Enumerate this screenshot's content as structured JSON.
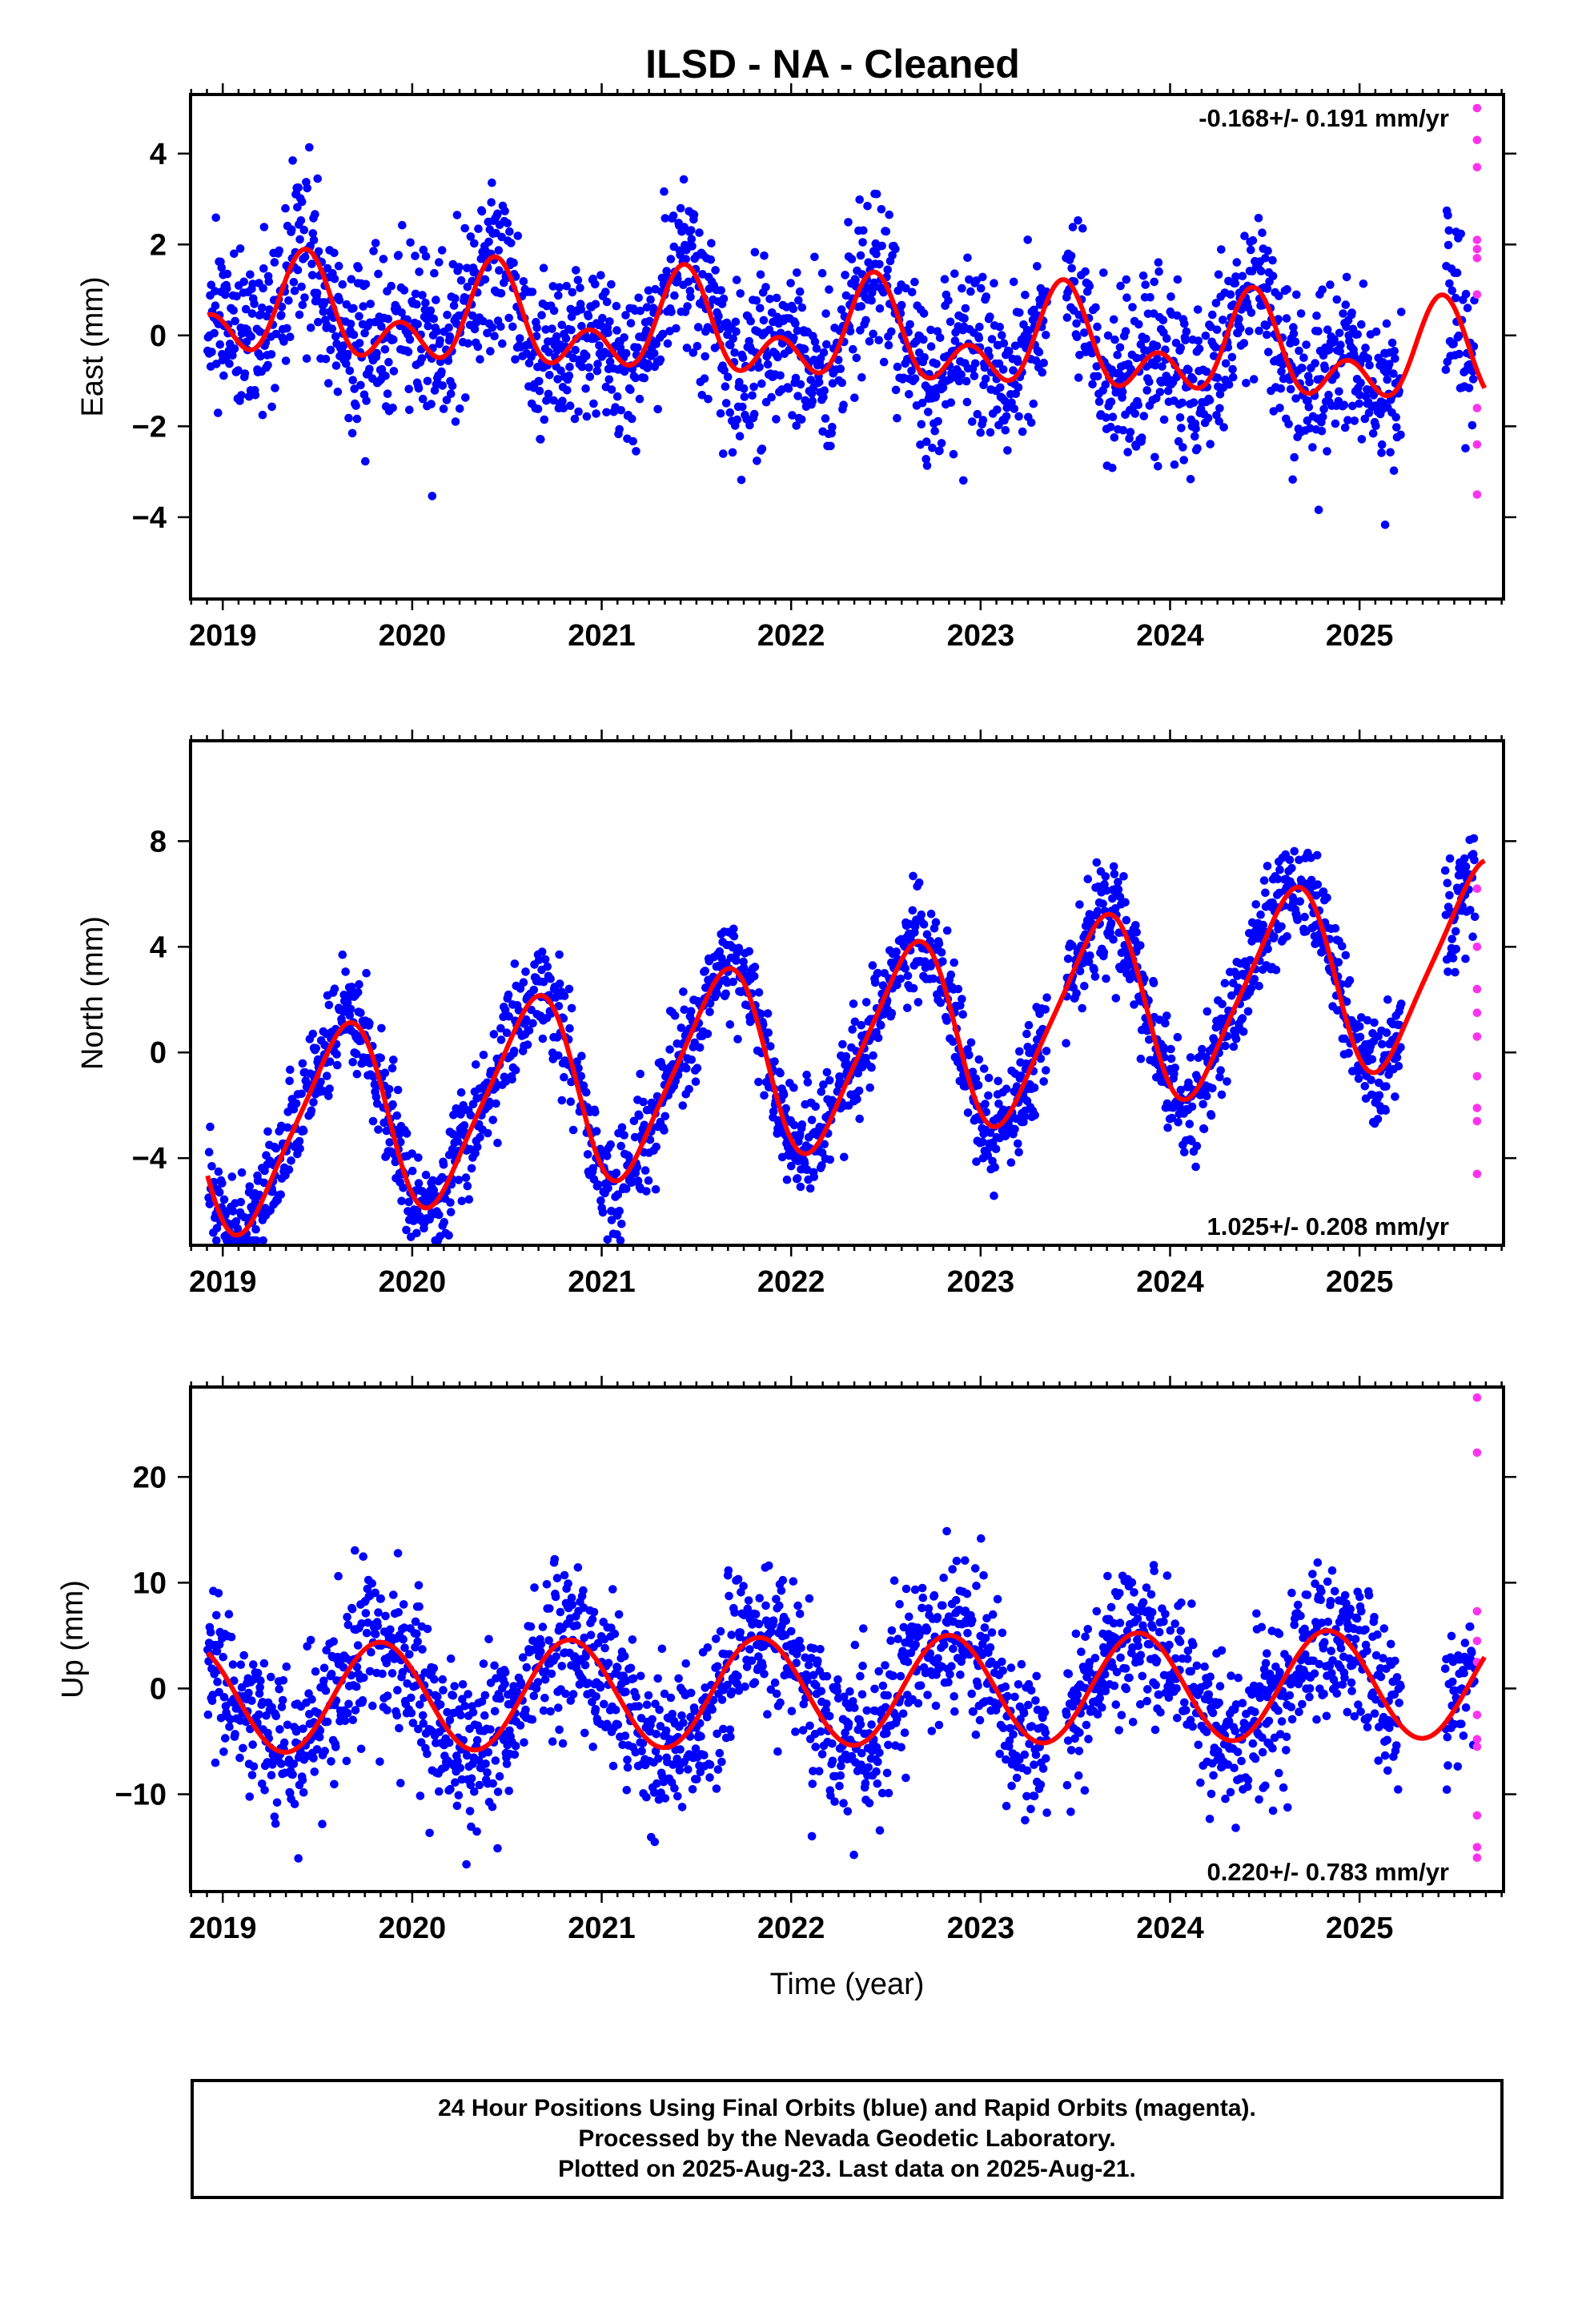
{
  "title": "ILSD  - NA - Cleaned",
  "x_axis_label": "Time (year)",
  "footer": {
    "line1": "24 Hour Positions Using Final Orbits (blue) and Rapid Orbits (magenta).",
    "line2": "Processed by the Nevada Geodetic Laboratory.",
    "line3": "Plotted on 2025-Aug-23. Last data on 2025-Aug-21."
  },
  "colors": {
    "final": "#0000ff",
    "rapid": "#ff33ee",
    "model": "#ff0000"
  },
  "chart_data": [
    {
      "type": "scatter",
      "component": "east",
      "ylabel": "East (mm)",
      "rate": "-0.168+/- 0.191 mm/yr",
      "rate_position": "top-right",
      "xlim": [
        2018.83,
        2025.76
      ],
      "ylim": [
        -5.8,
        5.3
      ],
      "xticks": [
        2019,
        2020,
        2021,
        2022,
        2023,
        2024,
        2025
      ],
      "xtick_labels": [
        "2019",
        "2020",
        "2021",
        "2022",
        "2023",
        "2024",
        "2025"
      ],
      "yticks": [
        -4,
        -2,
        0,
        2,
        4
      ],
      "ytick_labels": [
        "−4",
        "−2",
        "0",
        "2",
        "4"
      ],
      "grid": false,
      "model": {
        "offset": 0.0,
        "trend": -0.168,
        "ref_year": 2022.0,
        "annual_sin": 0.3,
        "annual_cos": -0.7,
        "semi_sin": -0.5,
        "semi_cos": 0.5
      },
      "scatter_sd": 0.9,
      "rapid_points": [
        [
          2025.62,
          5.0
        ],
        [
          2025.62,
          4.3
        ],
        [
          2025.62,
          3.7
        ],
        [
          2025.62,
          2.1
        ],
        [
          2025.62,
          1.9
        ],
        [
          2025.62,
          1.7
        ],
        [
          2025.62,
          0.9
        ],
        [
          2025.62,
          -1.6
        ],
        [
          2025.62,
          -2.4
        ],
        [
          2025.62,
          -3.5
        ]
      ]
    },
    {
      "type": "scatter",
      "component": "north",
      "ylabel": "North (mm)",
      "rate": "1.025+/- 0.208 mm/yr",
      "rate_position": "bottom-right",
      "xlim": [
        2018.83,
        2025.76
      ],
      "ylim": [
        -7.3,
        11.8
      ],
      "xticks": [
        2019,
        2020,
        2021,
        2022,
        2023,
        2024,
        2025
      ],
      "xtick_labels": [
        "2019",
        "2020",
        "2021",
        "2022",
        "2023",
        "2024",
        "2025"
      ],
      "yticks": [
        -4,
        0,
        4,
        8
      ],
      "ytick_labels": [
        "−4",
        "0",
        "4",
        "8"
      ],
      "grid": false,
      "model": {
        "offset": -0.2,
        "trend": 1.025,
        "ref_year": 2022.0,
        "annual_sin": -2.5,
        "annual_cos": -2.5,
        "semi_sin": 0.0,
        "semi_cos": -0.6
      },
      "scatter_sd": 1.0,
      "rapid_points": [
        [
          2025.62,
          6.2
        ],
        [
          2025.62,
          4.0
        ],
        [
          2025.62,
          2.4
        ],
        [
          2025.62,
          1.5
        ],
        [
          2025.62,
          0.6
        ],
        [
          2025.62,
          -0.9
        ],
        [
          2025.62,
          -2.1
        ],
        [
          2025.62,
          -4.6
        ],
        [
          2025.62,
          -2.6
        ]
      ]
    },
    {
      "type": "scatter",
      "component": "up",
      "ylabel": "Up (mm)",
      "rate": "0.220+/- 0.783 mm/yr",
      "rate_position": "bottom-right",
      "xlim": [
        2018.83,
        2025.76
      ],
      "ylim": [
        -19.2,
        28.5
      ],
      "xticks": [
        2019,
        2020,
        2021,
        2022,
        2023,
        2024,
        2025
      ],
      "xtick_labels": [
        "2019",
        "2020",
        "2021",
        "2022",
        "2023",
        "2024",
        "2025"
      ],
      "yticks": [
        -10,
        0,
        10,
        20
      ],
      "ytick_labels": [
        "−10",
        "0",
        "10",
        "20"
      ],
      "grid": false,
      "model": {
        "offset": -0.3,
        "trend": 0.22,
        "ref_year": 2022.0,
        "annual_sin": -4.5,
        "annual_cos": 2.5,
        "semi_sin": 0.0,
        "semi_cos": 0.0
      },
      "scatter_sd": 3.8,
      "rapid_points": [
        [
          2025.62,
          27.5
        ],
        [
          2025.62,
          22.3
        ],
        [
          2025.62,
          7.3
        ],
        [
          2025.62,
          4.5
        ],
        [
          2025.62,
          2.5
        ],
        [
          2025.62,
          -2.5
        ],
        [
          2025.62,
          -4.8
        ],
        [
          2025.62,
          -5.5
        ],
        [
          2025.62,
          -12.0
        ],
        [
          2025.62,
          -15.0
        ],
        [
          2025.62,
          -16.0
        ]
      ]
    }
  ]
}
